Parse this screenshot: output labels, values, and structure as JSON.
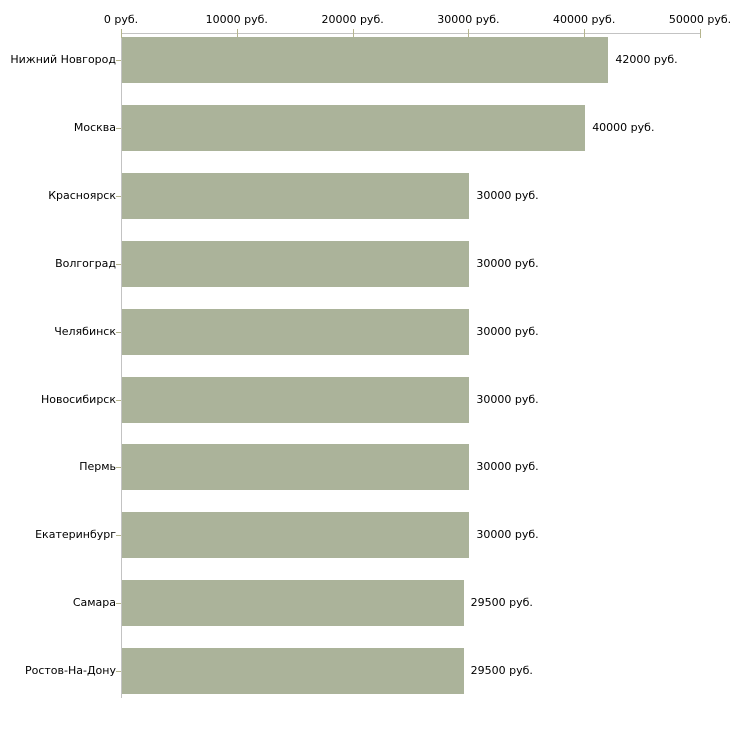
{
  "chart_data": {
    "type": "bar",
    "orientation": "horizontal",
    "title": "",
    "xlabel": "",
    "ylabel": "",
    "grid": false,
    "legend": false,
    "categories": [
      "Нижний Новгород",
      "Москва",
      "Красноярск",
      "Волгоград",
      "Челябинск",
      "Новосибирск",
      "Пермь",
      "Екатеринбург",
      "Самара",
      "Ростов-На-Дону"
    ],
    "values": [
      42000,
      40000,
      30000,
      30000,
      30000,
      30000,
      30000,
      30000,
      29500,
      29500
    ],
    "value_labels": [
      "42000 руб.",
      "40000 руб.",
      "30000 руб.",
      "30000 руб.",
      "30000 руб.",
      "30000 руб.",
      "30000 руб.",
      "30000 руб.",
      "29500 руб.",
      "29500 руб."
    ],
    "x_axis": {
      "position": "top",
      "xlim": [
        0,
        50000
      ],
      "tick_values": [
        0,
        10000,
        20000,
        30000,
        40000,
        50000
      ],
      "tick_labels": [
        "0 руб.",
        "10000 руб.",
        "20000 руб.",
        "30000 руб.",
        "40000 руб.",
        "50000 руб."
      ]
    }
  },
  "colors": {
    "bar_fill": "#abb39a",
    "axis_line": "#c3c3c3",
    "tick_mark": "#b5b58e",
    "text": "#000000",
    "background": "#ffffff"
  }
}
